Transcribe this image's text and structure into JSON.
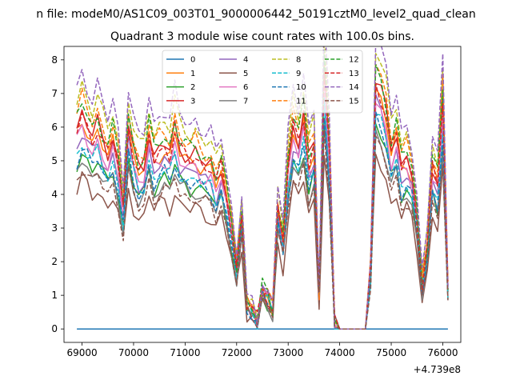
{
  "figure": {
    "suptitle": "n file: modeM0/AS1C09_003T01_9000006442_50191cztM0_level2_quad_clean",
    "offset_label": "+4.739e8"
  },
  "chart_data": {
    "type": "line",
    "title": "Quadrant 3 module wise count rates with 100.0s bins.",
    "xlabel": "",
    "ylabel": "",
    "x_offset": 473900000,
    "xlim": [
      68650,
      76350
    ],
    "ylim": [
      -0.4,
      8.4
    ],
    "x_ticks": [
      69000,
      70000,
      71000,
      72000,
      73000,
      74000,
      75000,
      76000
    ],
    "x_tick_labels": [
      "69000",
      "70000",
      "71000",
      "72000",
      "73000",
      "74000",
      "75000",
      "76000"
    ],
    "y_ticks": [
      0,
      1,
      2,
      3,
      4,
      5,
      6,
      7,
      8
    ],
    "y_tick_labels": [
      "0",
      "1",
      "2",
      "3",
      "4",
      "5",
      "6",
      "7",
      "8"
    ],
    "grid": false,
    "legend_position": "upper-center",
    "legend_columns": 4,
    "x": [
      68900,
      69000,
      69100,
      69200,
      69300,
      69400,
      69500,
      69600,
      69700,
      69800,
      69900,
      70000,
      70100,
      70200,
      70300,
      70400,
      70500,
      70600,
      70700,
      70800,
      70900,
      71000,
      71100,
      71200,
      71300,
      71400,
      71500,
      71600,
      71700,
      71800,
      71900,
      72000,
      72100,
      72200,
      72300,
      72400,
      72500,
      72600,
      72700,
      72800,
      72900,
      73000,
      73100,
      73200,
      73300,
      73400,
      73500,
      73600,
      73700,
      73800,
      73900,
      74000,
      74100,
      74200,
      74300,
      74400,
      74500,
      74600,
      74700,
      74800,
      74900,
      75000,
      75100,
      75200,
      75300,
      75400,
      75500,
      75600,
      75700,
      75800,
      75900,
      76000,
      76100
    ],
    "base_profile": [
      4.9,
      5.3,
      5.0,
      4.7,
      5.0,
      4.6,
      4.3,
      4.7,
      4.1,
      3.0,
      5.0,
      4.3,
      3.9,
      4.0,
      4.8,
      4.2,
      4.4,
      4.5,
      4.3,
      4.9,
      4.4,
      4.3,
      4.2,
      4.3,
      4.1,
      4.0,
      4.0,
      3.6,
      4.0,
      3.3,
      2.5,
      1.5,
      2.8,
      0.6,
      0.5,
      0.2,
      1.0,
      0.8,
      0.5,
      3.0,
      2.2,
      4.0,
      5.0,
      4.6,
      5.3,
      4.1,
      4.5,
      0.9,
      6.4,
      4.3,
      0.2,
      0.0,
      0.0,
      0.0,
      0.0,
      0.0,
      0.0,
      1.5,
      6.1,
      5.8,
      5.3,
      4.4,
      4.8,
      4.0,
      4.2,
      3.8,
      2.8,
      1.1,
      2.0,
      4.0,
      3.6,
      5.6,
      1.0
    ],
    "series": [
      {
        "name": "0",
        "color": "#1f77b4",
        "style": "solid",
        "scale": 0.0
      },
      {
        "name": "1",
        "color": "#ff7f0e",
        "style": "solid",
        "scale": 1.18
      },
      {
        "name": "2",
        "color": "#2ca02c",
        "style": "solid",
        "scale": 1.0
      },
      {
        "name": "3",
        "color": "#d62728",
        "style": "solid",
        "scale": 1.22
      },
      {
        "name": "4",
        "color": "#9467bd",
        "style": "solid",
        "scale": 1.1
      },
      {
        "name": "5",
        "color": "#8c564b",
        "style": "solid",
        "scale": 0.84
      },
      {
        "name": "6",
        "color": "#e377c2",
        "style": "solid",
        "scale": 1.12
      },
      {
        "name": "7",
        "color": "#7f7f7f",
        "style": "solid",
        "scale": 0.96
      },
      {
        "name": "8",
        "color": "#bcbd22",
        "style": "dashed",
        "scale": 1.38
      },
      {
        "name": "9",
        "color": "#17becf",
        "style": "dashed",
        "scale": 1.05
      },
      {
        "name": "10",
        "color": "#1f77b4",
        "style": "dashed",
        "scale": 1.02
      },
      {
        "name": "11",
        "color": "#ff7f0e",
        "style": "dashed",
        "scale": 1.3
      },
      {
        "name": "12",
        "color": "#2ca02c",
        "style": "dashed",
        "scale": 1.27
      },
      {
        "name": "13",
        "color": "#d62728",
        "style": "dashed",
        "scale": 1.2
      },
      {
        "name": "14",
        "color": "#9467bd",
        "style": "dashed",
        "scale": 1.45
      },
      {
        "name": "15",
        "color": "#8c564b",
        "style": "dashed",
        "scale": 0.92
      }
    ]
  }
}
